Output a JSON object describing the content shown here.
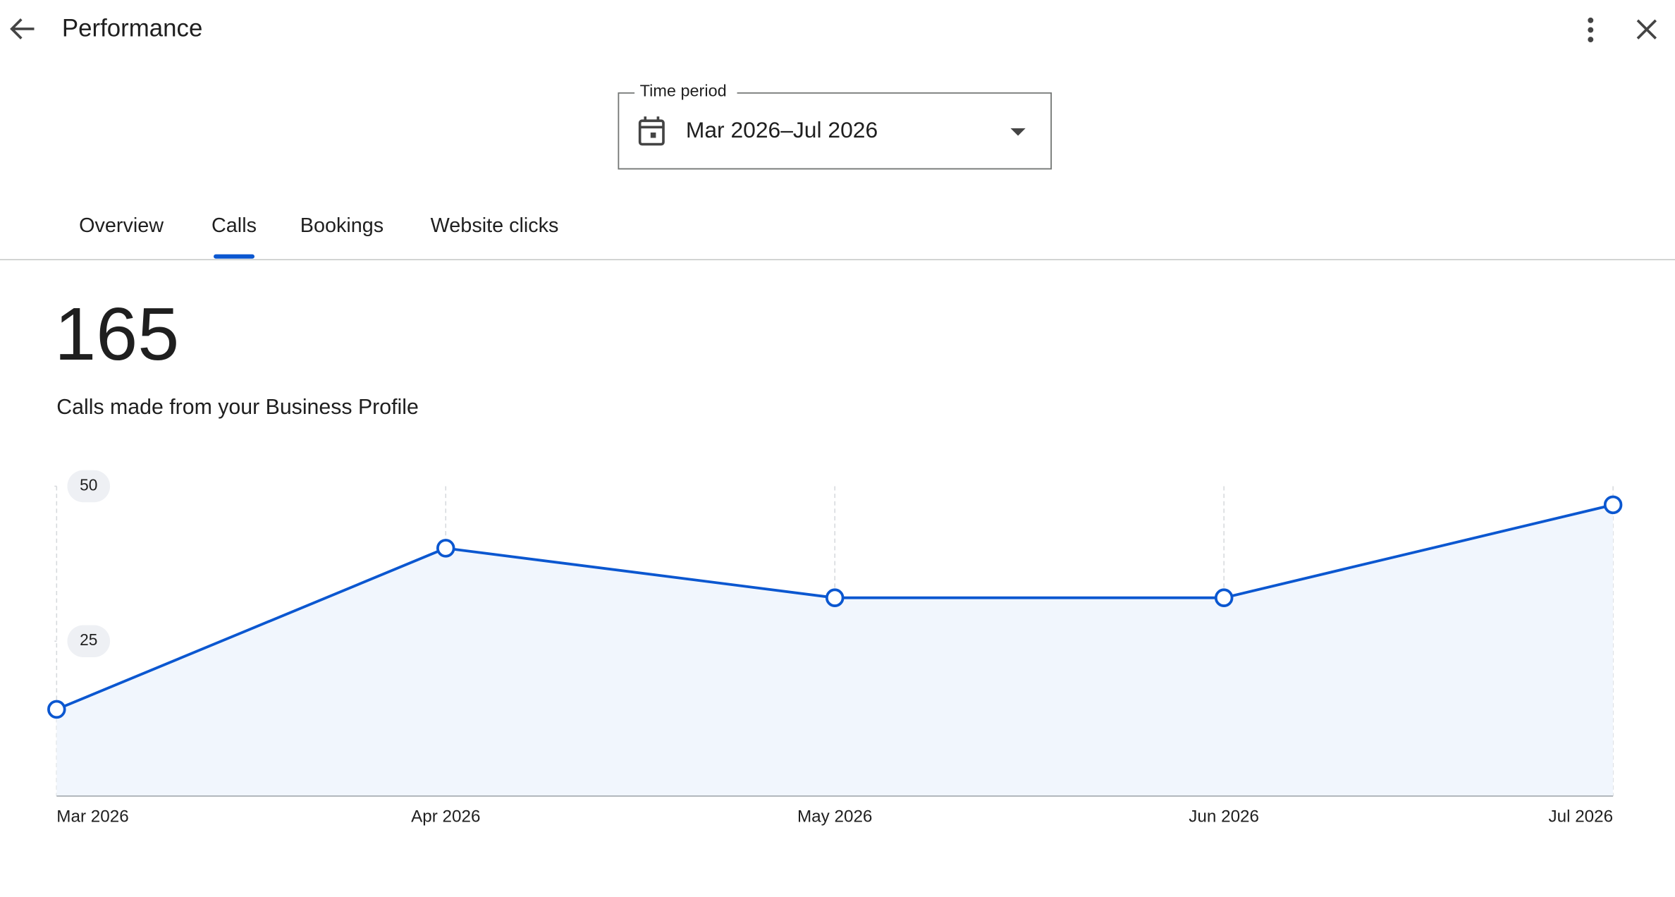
{
  "header": {
    "title": "Performance"
  },
  "time_period": {
    "label": "Time period",
    "value": "Mar 2026–Jul 2026"
  },
  "tabs": {
    "items": [
      "Overview",
      "Calls",
      "Bookings",
      "Website clicks"
    ],
    "selected": 1
  },
  "summary": {
    "total": "165",
    "description": "Calls made from your Business Profile"
  },
  "chart_data": {
    "type": "line",
    "categories": [
      "Mar 2026",
      "Apr 2026",
      "May 2026",
      "Jun 2026",
      "Jul 2026"
    ],
    "series": [
      {
        "color": "#0b57d0",
        "values": [
          14,
          40,
          32,
          32,
          47
        ]
      }
    ],
    "ylim": [
      0,
      50
    ],
    "yticks": [
      25,
      50
    ],
    "grid": true
  }
}
